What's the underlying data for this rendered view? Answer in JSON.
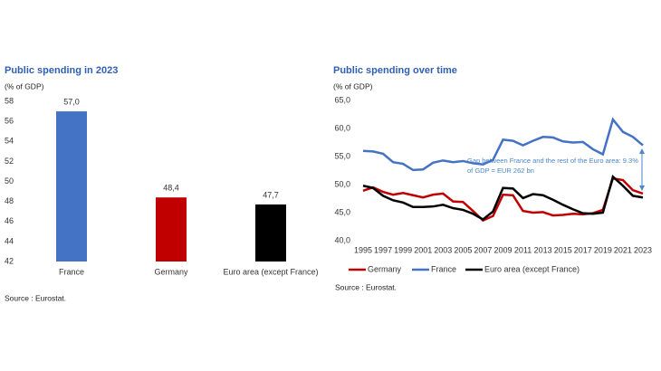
{
  "chart_data": [
    {
      "type": "bar",
      "title": "Public spending in 2023",
      "subtitle": "(% of GDP)",
      "categories": [
        "France",
        "Germany",
        "Euro area (except France)"
      ],
      "values": [
        57.0,
        48.4,
        47.7
      ],
      "value_labels": [
        "57,0",
        "48,4",
        "47,7"
      ],
      "colors": [
        "#4472c4",
        "#c00000",
        "#000000"
      ],
      "ylim": [
        42,
        58
      ],
      "yticks": [
        42,
        44,
        46,
        48,
        50,
        52,
        54,
        56,
        58
      ],
      "source": "Source : Eurostat."
    },
    {
      "type": "line",
      "title": "Public spending over time",
      "subtitle": "(% of GDP)",
      "x": [
        1995,
        1996,
        1997,
        1998,
        1999,
        2000,
        2001,
        2002,
        2003,
        2004,
        2005,
        2006,
        2007,
        2008,
        2009,
        2010,
        2011,
        2012,
        2013,
        2014,
        2015,
        2016,
        2017,
        2018,
        2019,
        2020,
        2021,
        2022,
        2023
      ],
      "series": [
        {
          "name": "Germany",
          "color": "#c00000",
          "values": [
            48.9,
            49.5,
            48.7,
            48.2,
            48.5,
            48.1,
            47.7,
            48.2,
            48.4,
            47.0,
            46.9,
            45.3,
            43.6,
            44.4,
            48.2,
            48.1,
            45.3,
            45.0,
            45.1,
            44.5,
            44.6,
            44.8,
            44.7,
            44.9,
            45.5,
            51.1,
            50.8,
            49.0,
            48.4
          ]
        },
        {
          "name": "France",
          "color": "#4472c4",
          "values": [
            56.0,
            55.9,
            55.5,
            54.0,
            53.7,
            52.6,
            52.7,
            53.9,
            54.3,
            54.0,
            54.2,
            53.8,
            53.6,
            54.4,
            58.0,
            57.8,
            57.0,
            57.8,
            58.5,
            58.4,
            57.7,
            57.5,
            57.6,
            56.3,
            55.4,
            61.6,
            59.4,
            58.5,
            57.0
          ]
        },
        {
          "name": "Euro area (except France)",
          "color": "#000000",
          "values": [
            49.8,
            49.4,
            48.0,
            47.2,
            46.8,
            46.0,
            46.0,
            46.1,
            46.4,
            45.8,
            45.5,
            44.8,
            43.8,
            45.2,
            49.4,
            49.3,
            47.6,
            48.3,
            48.1,
            47.3,
            46.4,
            45.6,
            44.9,
            44.8,
            45.0,
            51.4,
            49.8,
            48.0,
            47.7
          ]
        }
      ],
      "xlim": [
        1995,
        2023
      ],
      "xticks": [
        1995,
        1997,
        1999,
        2001,
        2003,
        2005,
        2007,
        2009,
        2011,
        2013,
        2015,
        2017,
        2019,
        2021,
        2023
      ],
      "ylim": [
        40,
        65
      ],
      "yticks": [
        {
          "value": 40,
          "label": "40,0"
        },
        {
          "value": 45,
          "label": "45,0"
        },
        {
          "value": 50,
          "label": "50,0"
        },
        {
          "value": 55,
          "label": "55,0"
        },
        {
          "value": 60,
          "label": "60,0"
        },
        {
          "value": 65,
          "label": "65,0"
        }
      ],
      "annotation": "Gap between France and the rest of the Euro area: 9.3% of GDP =  EUR 262 bn",
      "source": "Source : Eurostat."
    }
  ]
}
